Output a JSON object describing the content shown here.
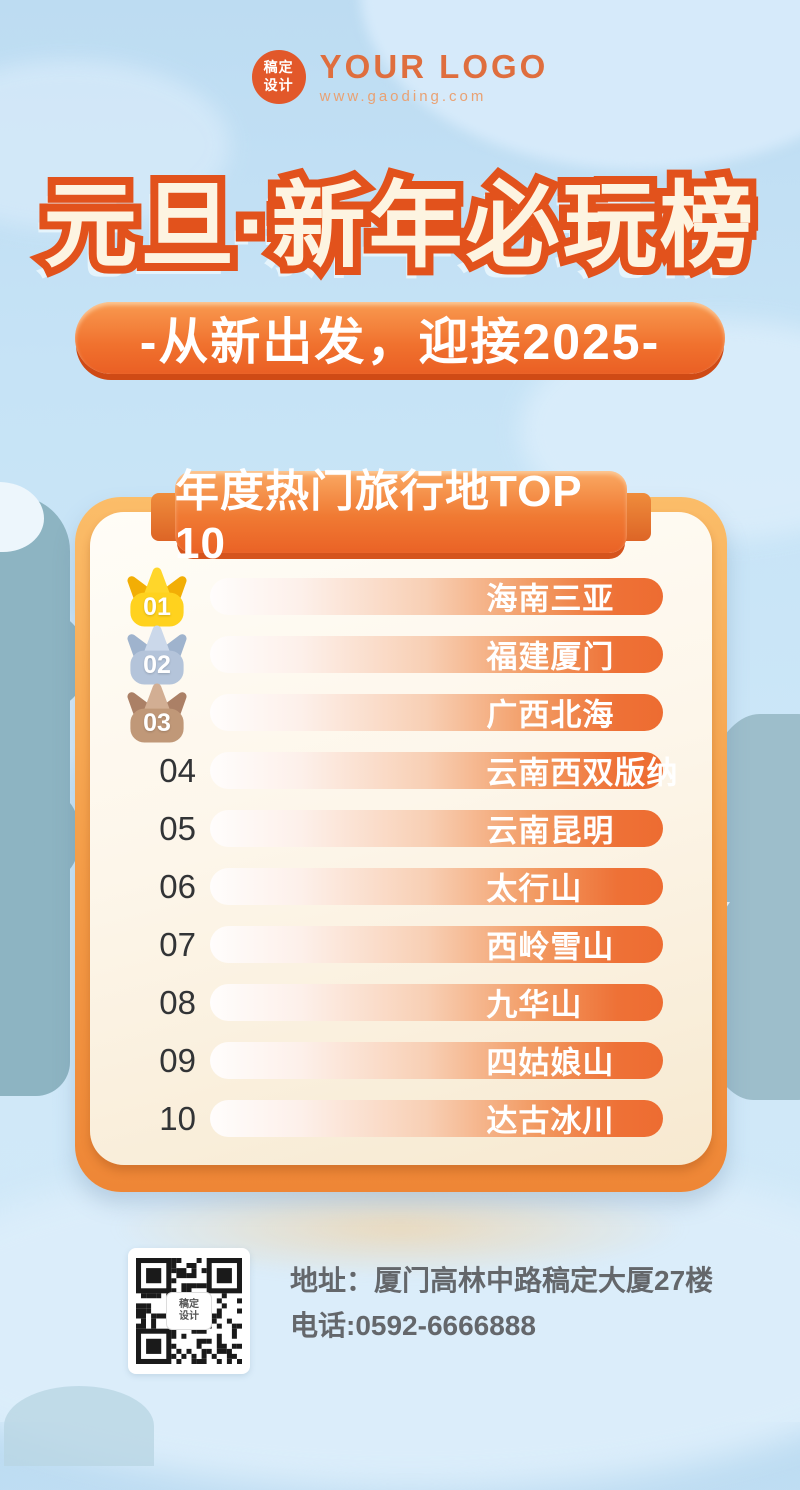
{
  "logo": {
    "badge_line1": "稿定",
    "badge_line2": "设计",
    "name": "YOUR LOGO",
    "url": "www.gaoding.com"
  },
  "title": "元旦·新年必玩榜",
  "subtitle": "-从新出发，迎接2025-",
  "card": {
    "header": "年度热门旅行地TOP 10",
    "items": [
      {
        "rank": "01",
        "name": "海南三亚",
        "medal": "gold"
      },
      {
        "rank": "02",
        "name": "福建厦门",
        "medal": "silver"
      },
      {
        "rank": "03",
        "name": "广西北海",
        "medal": "bronze"
      },
      {
        "rank": "04",
        "name": "云南西双版纳",
        "medal": null
      },
      {
        "rank": "05",
        "name": "云南昆明",
        "medal": null
      },
      {
        "rank": "06",
        "name": "太行山",
        "medal": null
      },
      {
        "rank": "07",
        "name": "西岭雪山",
        "medal": null
      },
      {
        "rank": "08",
        "name": "九华山",
        "medal": null
      },
      {
        "rank": "09",
        "name": "四姑娘山",
        "medal": null
      },
      {
        "rank": "10",
        "name": "达古冰川",
        "medal": null
      }
    ]
  },
  "footer": {
    "address": "地址：厦门高林中路稿定大厦27楼",
    "phone": "电话:0592-6666888",
    "qr_label_line1": "稿定",
    "qr_label_line2": "设计"
  },
  "colors": {
    "accent_orange": "#ee6a2c",
    "title_outline": "#e2521c",
    "title_fill": "#fdf4e1",
    "card_border": "#f49c47",
    "card_inner": "#fdf6ea",
    "sky": "#c6e3f6",
    "gold": "#ffd21e",
    "silver": "#b4c4da",
    "bronze": "#c09878",
    "footer_text": "#64676b"
  }
}
